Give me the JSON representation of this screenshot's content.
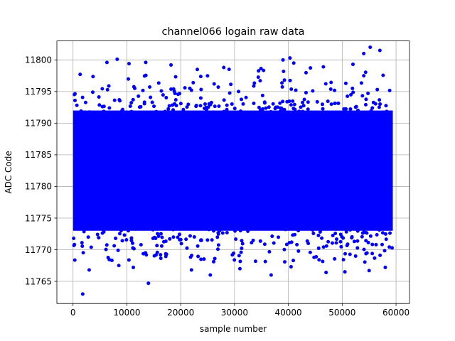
{
  "chart_data": {
    "type": "scatter",
    "title": "channel066 logain raw data",
    "xlabel": "sample number",
    "ylabel": "ADC Code",
    "xlim": [
      -3000,
      62500
    ],
    "ylim": [
      11761.5,
      11803.0
    ],
    "x_ticks": [
      0,
      10000,
      20000,
      30000,
      40000,
      50000,
      60000
    ],
    "y_ticks": [
      11765,
      11770,
      11775,
      11780,
      11785,
      11790,
      11795,
      11800
    ],
    "grid": true,
    "legend": "none",
    "marker_color": "#0000ff",
    "series": [
      {
        "sample_range": [
          0,
          59400
        ],
        "dense_band": [
          11773,
          11792
        ],
        "outlier_points": [
          {
            "x": 1800,
            "y": 11763.0
          },
          {
            "x": 14000,
            "y": 11764.7
          },
          {
            "x": 3000,
            "y": 11766.8
          },
          {
            "x": 8500,
            "y": 11767.5
          },
          {
            "x": 11200,
            "y": 11767.2
          },
          {
            "x": 22000,
            "y": 11766.8
          },
          {
            "x": 25500,
            "y": 11766.0
          },
          {
            "x": 31000,
            "y": 11767.0
          },
          {
            "x": 36800,
            "y": 11766.0
          },
          {
            "x": 40500,
            "y": 11767.3
          },
          {
            "x": 47000,
            "y": 11766.4
          },
          {
            "x": 50500,
            "y": 11766.5
          },
          {
            "x": 55000,
            "y": 11766.7
          },
          {
            "x": 58000,
            "y": 11767.2
          },
          {
            "x": 8200,
            "y": 11800.1
          },
          {
            "x": 6300,
            "y": 11799.6
          },
          {
            "x": 10400,
            "y": 11799.4
          },
          {
            "x": 13500,
            "y": 11799.6
          },
          {
            "x": 18200,
            "y": 11799.2
          },
          {
            "x": 28000,
            "y": 11798.8
          },
          {
            "x": 39000,
            "y": 11800.0
          },
          {
            "x": 40300,
            "y": 11800.3
          },
          {
            "x": 41000,
            "y": 11799.5
          },
          {
            "x": 46500,
            "y": 11798.9
          },
          {
            "x": 52000,
            "y": 11799.3
          },
          {
            "x": 54000,
            "y": 11801.0
          },
          {
            "x": 55200,
            "y": 11802.0
          },
          {
            "x": 57000,
            "y": 11801.5
          }
        ]
      }
    ]
  }
}
